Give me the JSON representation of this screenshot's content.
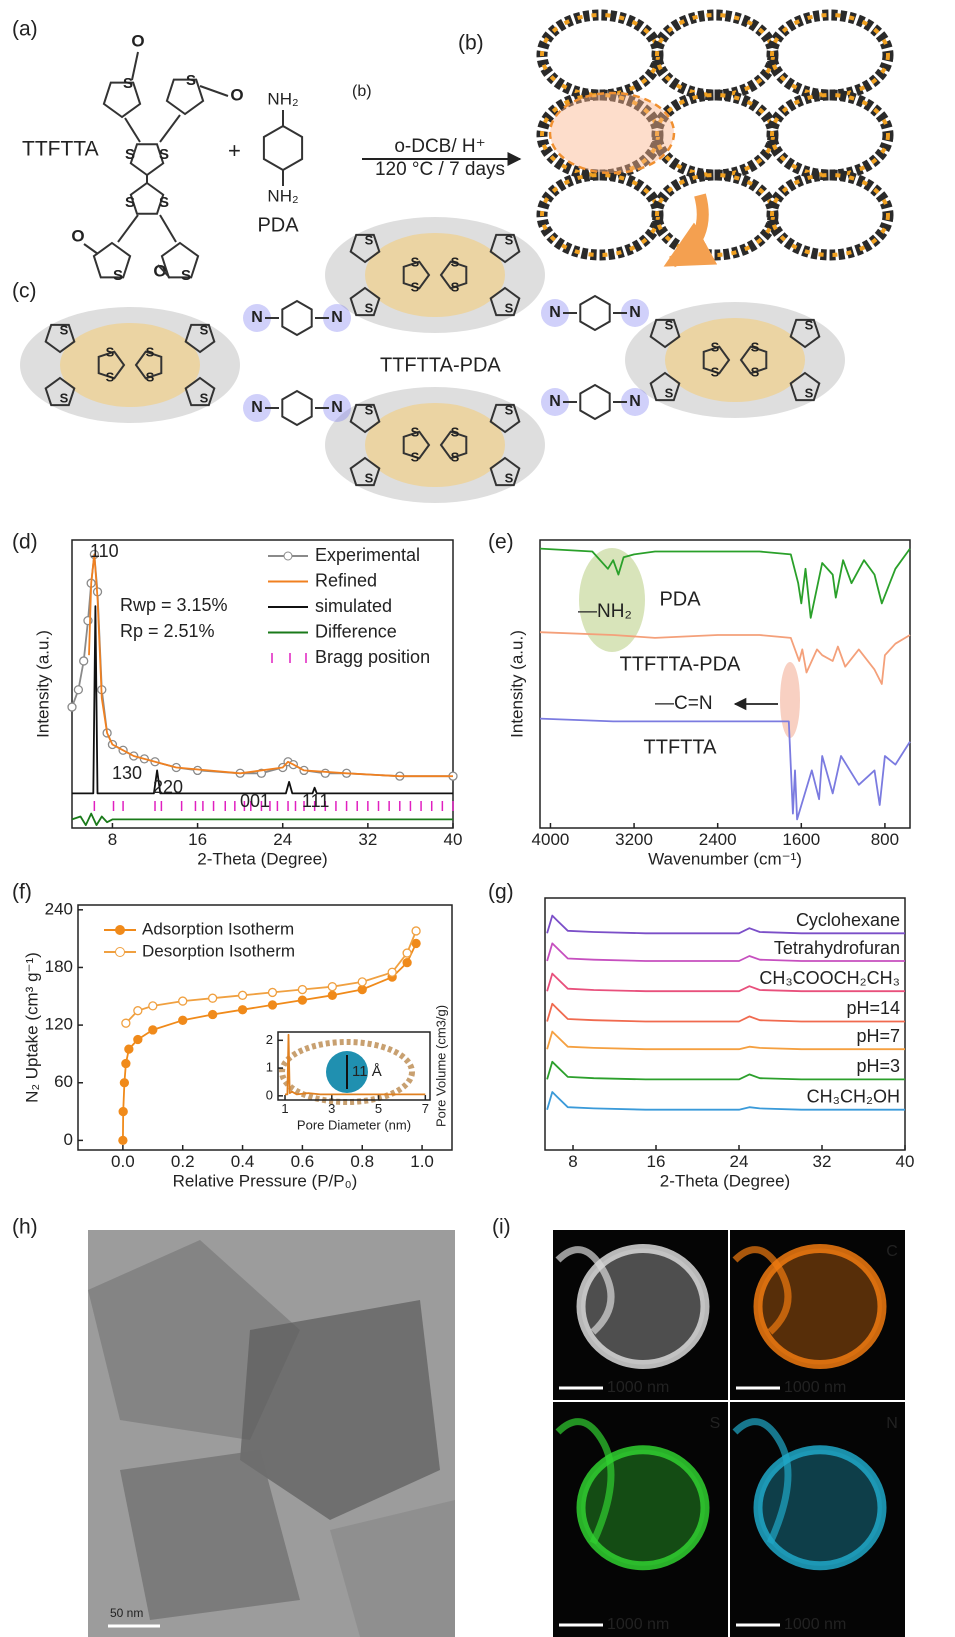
{
  "panel_labels": {
    "a": "(a)",
    "b": "(b)",
    "c": "(c)",
    "d": "(d)",
    "e": "(e)",
    "f": "(f)",
    "g": "(g)",
    "h": "(h)",
    "i": "(i)"
  },
  "scheme": {
    "reactant_1": "TTFTTA",
    "plus": "+",
    "reactant_2": "PDA",
    "amine": "NH₂",
    "atom_s": "S",
    "atom_o": "O",
    "atom_n": "N",
    "step_ref": "(b)",
    "conditions_1": "o-DCB/ H⁺",
    "conditions_2": "120 °C / 7 days",
    "product": "TTFTTA-PDA"
  },
  "chart_data": [
    {
      "type": "line",
      "x_label": "2-Theta (Degree)",
      "y_label": "Intensity (a.u.)",
      "xlim": [
        4.2,
        40
      ],
      "xticks": [
        8,
        16,
        24,
        32,
        40
      ],
      "ylim": [
        0,
        100
      ],
      "annotations": [
        "110",
        "130",
        "220",
        "001",
        "111"
      ],
      "fit_stats": [
        "Rwp = 3.15%",
        "Rp = 2.51%"
      ],
      "series": [
        {
          "name": "Experimental",
          "color": "#8a8a8a",
          "marker": "open",
          "x": [
            4.2,
            4.8,
            5.3,
            5.7,
            6,
            6.3,
            6.6,
            7,
            7.5,
            8,
            9,
            10,
            11,
            12,
            14,
            16,
            20,
            22,
            24,
            24.5,
            25,
            26,
            28,
            30,
            35,
            40
          ],
          "values": [
            42,
            48,
            58,
            72,
            85,
            95,
            82,
            48,
            33,
            29,
            27,
            25,
            24,
            23,
            21,
            20,
            19,
            19,
            21,
            23,
            22,
            20,
            19,
            19,
            18,
            18
          ]
        },
        {
          "name": "Refined",
          "color": "#f08020",
          "x": [
            5.8,
            6,
            6.3,
            6.6,
            7,
            7.5,
            8,
            10,
            14,
            20,
            24,
            24.5,
            25,
            26,
            30,
            35,
            40
          ],
          "values": [
            60,
            85,
            95,
            80,
            45,
            33,
            29,
            25,
            21,
            19,
            21,
            23,
            22,
            20,
            19,
            18,
            18
          ]
        },
        {
          "name": "simulated",
          "color": "#111111",
          "x": [
            4.2,
            6.2,
            6.4,
            6.6,
            8,
            11.9,
            12.2,
            12.5,
            24.3,
            24.6,
            24.9,
            26.8,
            27,
            27.2,
            40
          ],
          "values": [
            12,
            12,
            77,
            12,
            12,
            12,
            20,
            12,
            12,
            16,
            12,
            12,
            14,
            12,
            12
          ]
        },
        {
          "name": "Difference",
          "color": "#1a7a1a",
          "x": [
            4.2,
            5,
            5.5,
            6,
            6.5,
            7,
            7.5,
            8,
            10,
            40
          ],
          "values": [
            3,
            4,
            1,
            5,
            1,
            4,
            2,
            3,
            3,
            3
          ]
        },
        {
          "name": "Bragg position",
          "color": "#e020c0",
          "x": [
            6.3,
            8.1,
            9,
            12,
            12.6,
            14.5,
            15.8,
            16.5,
            17.5,
            18.6,
            19.5,
            20.4,
            21,
            22,
            22.8,
            23.5,
            24.5,
            25.2,
            26,
            27,
            28,
            29,
            30,
            31,
            32,
            33,
            34,
            35,
            36,
            37,
            38,
            39,
            40
          ]
        }
      ]
    },
    {
      "type": "line",
      "x_label": "Wavenumber (cm⁻¹)",
      "y_label": "Intensity (a.u.)",
      "xlim": [
        4100,
        560
      ],
      "xticks": [
        4000,
        3200,
        2400,
        1600,
        800
      ],
      "ylim": [
        0,
        100
      ],
      "annotations": [
        "—NH₂",
        "—C=N"
      ],
      "series": [
        {
          "name": "PDA",
          "color": "#2aa02a",
          "x": [
            4100,
            3600,
            3450,
            3400,
            3350,
            3300,
            3200,
            3000,
            2800,
            2400,
            2000,
            1700,
            1630,
            1600,
            1560,
            1510,
            1400,
            1300,
            1270,
            1200,
            1120,
            1000,
            900,
            830,
            700,
            560
          ],
          "values": [
            97,
            96,
            90,
            93,
            88,
            94,
            95,
            96,
            96,
            96,
            96,
            95,
            85,
            78,
            90,
            73,
            92,
            88,
            80,
            93,
            85,
            93,
            88,
            78,
            90,
            97
          ]
        },
        {
          "name": "TTFTTA-PDA",
          "color": "#f4a07a",
          "x": [
            4100,
            3400,
            3000,
            2400,
            2000,
            1700,
            1620,
            1590,
            1550,
            1450,
            1400,
            1300,
            1250,
            1180,
            1050,
            900,
            830,
            800,
            700,
            560
          ],
          "values": [
            68,
            67,
            66,
            67,
            67,
            66,
            58,
            62,
            54,
            62,
            60,
            58,
            63,
            56,
            62,
            55,
            50,
            60,
            64,
            67
          ]
        },
        {
          "name": "TTFTTA",
          "color": "#7b7be0",
          "x": [
            4100,
            3400,
            3000,
            2400,
            2000,
            1720,
            1680,
            1660,
            1640,
            1500,
            1430,
            1400,
            1300,
            1220,
            1050,
            900,
            850,
            800,
            700,
            560
          ],
          "values": [
            38,
            37,
            37,
            37,
            37,
            37,
            5,
            20,
            3,
            20,
            10,
            25,
            12,
            25,
            15,
            20,
            8,
            25,
            22,
            30
          ]
        }
      ]
    },
    {
      "type": "line",
      "x_label": "Relative Pressure (P/P₀)",
      "y_label": "N₂ Uptake (cm³ g⁻¹)",
      "xlim": [
        -0.15,
        1.1
      ],
      "xticks": [
        {
          "value": 0,
          "label": "0.0"
        },
        0.2,
        0.4,
        0.6,
        0.8,
        {
          "value": 1,
          "label": "1.0"
        }
      ],
      "ylim": [
        -10,
        245
      ],
      "yticks": [
        0,
        60,
        120,
        180,
        240
      ],
      "series": [
        {
          "name": "Adsorption Isotherm",
          "color": "#f08a1a",
          "marker": "filled",
          "x": [
            0,
            0.001,
            0.005,
            0.01,
            0.02,
            0.05,
            0.1,
            0.2,
            0.3,
            0.4,
            0.5,
            0.6,
            0.7,
            0.8,
            0.9,
            0.95,
            0.98
          ],
          "values": [
            0,
            30,
            60,
            80,
            95,
            105,
            115,
            125,
            131,
            136,
            141,
            146,
            151,
            157,
            170,
            185,
            205
          ]
        },
        {
          "name": "Desorption Isotherm",
          "color": "#f0a040",
          "marker": "open",
          "x": [
            0.98,
            0.95,
            0.9,
            0.8,
            0.7,
            0.6,
            0.5,
            0.4,
            0.3,
            0.2,
            0.1,
            0.05,
            0.01
          ],
          "values": [
            218,
            195,
            175,
            165,
            160,
            157,
            154,
            151,
            148,
            145,
            140,
            135,
            122
          ]
        }
      ],
      "inset": {
        "type": "line",
        "x_label": "Pore Diameter (nm)",
        "y_label": "Pore Volume (cm3/g)",
        "xlim": [
          0.7,
          7.2
        ],
        "xticks": [
          1,
          3,
          5,
          7
        ],
        "ylim": [
          -0.15,
          2.3
        ],
        "yticks": [
          0,
          1,
          2
        ],
        "annotation": "11 Å",
        "series": [
          {
            "color": "#e08020",
            "x": [
              1,
              1.1,
              1.15,
              1.2,
              1.3,
              1.5,
              2,
              2.5,
              3,
              4,
              5,
              6,
              6.5,
              7
            ],
            "values": [
              0.05,
              0.05,
              2.2,
              0.1,
              0.15,
              0.05,
              0.1,
              0.05,
              0.05,
              0.05,
              0.05,
              0.05,
              0.05,
              0.05
            ]
          }
        ]
      }
    },
    {
      "type": "line",
      "x_label": "2-Theta (Degree)",
      "xlim": [
        5.3,
        40
      ],
      "xticks": [
        8,
        16,
        24,
        32,
        40
      ],
      "ylim": [
        0,
        100
      ],
      "series": [
        {
          "name": "Cyclohexane",
          "color": "#7b4fc8",
          "x": [
            5.5,
            6,
            6.5,
            7.5,
            10,
            15,
            20,
            24,
            25,
            26,
            30,
            40
          ],
          "values": [
            86,
            93,
            91,
            87,
            86.5,
            86,
            86,
            86,
            88,
            86.5,
            86,
            86
          ]
        },
        {
          "name": "Tetrahydrofuran",
          "color": "#c64fbf",
          "x": [
            5.5,
            6,
            6.5,
            7.5,
            10,
            15,
            20,
            24,
            25,
            26,
            30,
            40
          ],
          "values": [
            75,
            82,
            80,
            76,
            75.5,
            75,
            75,
            75,
            77,
            75.5,
            75,
            75
          ]
        },
        {
          "name": "CH₃COOCH₂CH₃",
          "color": "#e8507c",
          "x": [
            5.5,
            6,
            6.5,
            7.5,
            10,
            15,
            20,
            24,
            25,
            26,
            30,
            40
          ],
          "values": [
            63,
            70,
            68,
            64,
            63.5,
            63,
            63,
            63,
            65,
            63.5,
            63,
            63
          ]
        },
        {
          "name": "pH=14",
          "color": "#f06a4f",
          "x": [
            5.5,
            6,
            6.5,
            7.5,
            10,
            15,
            20,
            24,
            25,
            26,
            30,
            40
          ],
          "values": [
            51,
            58,
            56,
            52,
            51.5,
            51,
            51,
            51,
            53,
            51.5,
            51,
            51
          ]
        },
        {
          "name": "pH=7",
          "color": "#f5a040",
          "x": [
            5.5,
            6,
            6.5,
            7.5,
            10,
            15,
            20,
            24,
            25,
            26,
            30,
            40
          ],
          "values": [
            40,
            47,
            45,
            41,
            40.5,
            40,
            40,
            40,
            41,
            40.5,
            40,
            40
          ]
        },
        {
          "name": "pH=3",
          "color": "#2ca02c",
          "x": [
            5.5,
            6,
            6.5,
            7.5,
            10,
            15,
            20,
            24,
            25,
            26,
            30,
            40
          ],
          "values": [
            28,
            35,
            33,
            29,
            28.5,
            28,
            28,
            28,
            30,
            28.5,
            28,
            28
          ]
        },
        {
          "name": "CH₃CH₂OH",
          "color": "#3a9ad9",
          "x": [
            5.5,
            6,
            6.5,
            7.5,
            10,
            15,
            20,
            24,
            25,
            26,
            30,
            40
          ],
          "values": [
            16,
            23,
            21,
            17,
            16.5,
            16,
            16,
            16,
            17,
            16.5,
            16,
            16
          ]
        }
      ]
    }
  ],
  "tem": {
    "scale_bar": "50 nm"
  },
  "eds": {
    "panels": [
      {
        "scale_bar": "1000 nm"
      },
      {
        "element": "C",
        "scale_bar": "1000 nm",
        "color": "#f07a10"
      },
      {
        "element": "S",
        "scale_bar": "1000 nm",
        "color": "#30d030"
      },
      {
        "element": "N",
        "scale_bar": "1000 nm",
        "color": "#20a8c8"
      }
    ]
  }
}
